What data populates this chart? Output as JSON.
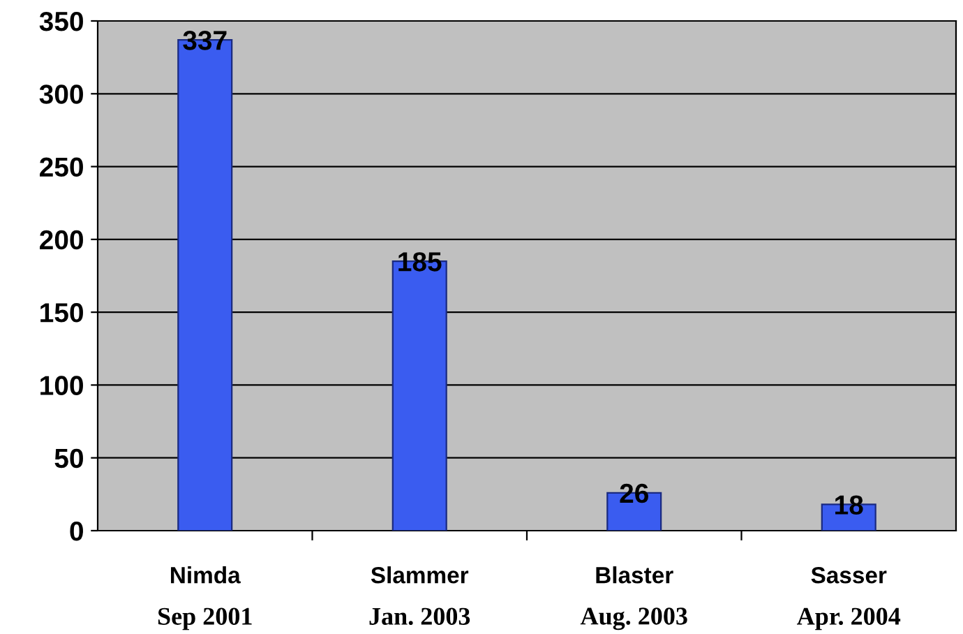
{
  "chart_data": {
    "type": "bar",
    "categories": [
      "Nimda\nSep 2001",
      "Slammer\nJan. 2003",
      "Blaster\nAug. 2003",
      "Sasser\nApr. 2004"
    ],
    "values": [
      337,
      185,
      26,
      18
    ],
    "color": "#3a5cf0",
    "ylim": [
      0,
      350
    ],
    "yticks": [
      0,
      50,
      100,
      150,
      200,
      250,
      300,
      350
    ],
    "grid": "y",
    "data_labels": true
  }
}
